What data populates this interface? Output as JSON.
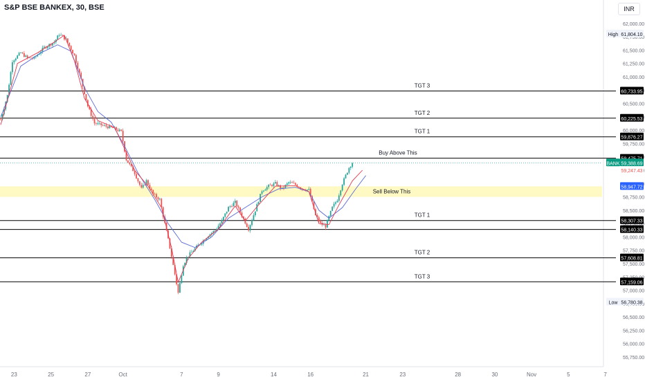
{
  "header": {
    "title": "S&P BSE BANKEX, 30, BSE",
    "currency": "INR"
  },
  "colors": {
    "up": "#26a69a",
    "down": "#ef5350",
    "ma_fast": "#e53950",
    "ma_slow": "#5b6bd6",
    "zone": "#fff59d",
    "level_line": "#000000"
  },
  "chart_data": {
    "type": "candlestick",
    "y_range": [
      55620,
      62180
    ],
    "y_ticks": [
      "62,000.00",
      "61,750.00",
      "61,500.00",
      "61,250.00",
      "61,000.00",
      "60,750.00",
      "60,500.00",
      "60,250.00",
      "60,000.00",
      "59,750.00",
      "59,500.00",
      "59,250.00",
      "59,000.00",
      "58,750.00",
      "58,500.00",
      "58,250.00",
      "58,000.00",
      "57,750.00",
      "57,500.00",
      "57,250.00",
      "57,000.00",
      "56,750.00",
      "56,500.00",
      "56,250.00",
      "56,000.00",
      "55,750.00"
    ],
    "x_ticks": [
      {
        "label": "23",
        "bar": 8
      },
      {
        "label": "25",
        "bar": 30
      },
      {
        "label": "27",
        "bar": 52
      },
      {
        "label": "Oct",
        "bar": 73
      },
      {
        "label": "7",
        "bar": 108
      },
      {
        "label": "9",
        "bar": 130
      },
      {
        "label": "14",
        "bar": 163
      },
      {
        "label": "16",
        "bar": 185
      },
      {
        "label": "21",
        "bar": 218
      },
      {
        "label": "23",
        "bar": 240
      },
      {
        "label": "28",
        "bar": 273
      },
      {
        "label": "30",
        "bar": 295
      },
      {
        "label": "Nov",
        "bar": 317
      },
      {
        "label": "5",
        "bar": 339
      },
      {
        "label": "7",
        "bar": 361
      }
    ],
    "levels": [
      {
        "label": "TGT 3",
        "value": 60733.95,
        "value_text": "60,733.95"
      },
      {
        "label": "TGT 2",
        "value": 60225.53,
        "value_text": "60,225.53"
      },
      {
        "label": "TGT 1",
        "value": 59876.27,
        "value_text": "59,876.27"
      },
      {
        "label": "Buy Above This",
        "value": 59475.71,
        "value_text": "59,475.71"
      },
      {
        "label": "TGT 1",
        "value": 58307.33,
        "value_text": "58,307.33"
      },
      {
        "label": "",
        "value": 58140.33,
        "value_text": "58,140.33"
      },
      {
        "label": "TGT 2",
        "value": 57608.81,
        "value_text": "57,608.81"
      },
      {
        "label": "TGT 3",
        "value": 57159.06,
        "value_text": "57,159.06"
      }
    ],
    "zone": {
      "label": "Sell Below This",
      "from": 58750,
      "to": 58947.72
    },
    "price_labels": [
      {
        "text": "High",
        "value_text": "61,804.10",
        "value": 61804.1,
        "style": "plain"
      },
      {
        "text": "BANK",
        "value_text": "59,388.69",
        "value": 59388.69,
        "style": "teal"
      },
      {
        "text": "",
        "value_text": "59,247.43",
        "value": 59247.43,
        "style": "red"
      },
      {
        "text": "",
        "value_text": "58,947.72",
        "value": 58947.72,
        "style": "blue"
      },
      {
        "text": "Low",
        "value_text": "56,780.38",
        "value": 56780.38,
        "style": "plain"
      }
    ],
    "waypoints": [
      [
        0,
        60200
      ],
      [
        4,
        60650
      ],
      [
        7,
        61300
      ],
      [
        12,
        61450
      ],
      [
        16,
        61350
      ],
      [
        20,
        61350
      ],
      [
        26,
        61550
      ],
      [
        32,
        61650
      ],
      [
        35,
        61800
      ],
      [
        39,
        61700
      ],
      [
        44,
        61400
      ],
      [
        48,
        60950
      ],
      [
        52,
        60450
      ],
      [
        56,
        60130
      ],
      [
        62,
        60080
      ],
      [
        68,
        60030
      ],
      [
        72,
        59970
      ],
      [
        75,
        59450
      ],
      [
        80,
        59200
      ],
      [
        84,
        58900
      ],
      [
        87,
        59050
      ],
      [
        91,
        58800
      ],
      [
        95,
        58700
      ],
      [
        98,
        58250
      ],
      [
        101,
        57800
      ],
      [
        104,
        57300
      ],
      [
        106,
        56950
      ],
      [
        109,
        57480
      ],
      [
        112,
        57650
      ],
      [
        116,
        57780
      ],
      [
        120,
        57900
      ],
      [
        124,
        58030
      ],
      [
        128,
        58120
      ],
      [
        132,
        58300
      ],
      [
        136,
        58550
      ],
      [
        140,
        58650
      ],
      [
        144,
        58400
      ],
      [
        148,
        58150
      ],
      [
        152,
        58500
      ],
      [
        156,
        58870
      ],
      [
        160,
        58950
      ],
      [
        164,
        59000
      ],
      [
        168,
        58900
      ],
      [
        172,
        59020
      ],
      [
        176,
        58980
      ],
      [
        180,
        58900
      ],
      [
        184,
        58880
      ],
      [
        188,
        58400
      ],
      [
        191,
        58250
      ],
      [
        194,
        58200
      ],
      [
        198,
        58550
      ],
      [
        201,
        58700
      ],
      [
        204,
        59000
      ],
      [
        208,
        59300
      ],
      [
        210,
        59390
      ]
    ],
    "ma_fast": [
      [
        0,
        60100
      ],
      [
        10,
        61250
      ],
      [
        22,
        61450
      ],
      [
        32,
        61650
      ],
      [
        38,
        61780
      ],
      [
        44,
        61300
      ],
      [
        50,
        60600
      ],
      [
        58,
        60180
      ],
      [
        68,
        60050
      ],
      [
        74,
        59650
      ],
      [
        80,
        59250
      ],
      [
        88,
        58950
      ],
      [
        96,
        58550
      ],
      [
        102,
        57800
      ],
      [
        106,
        57150
      ],
      [
        112,
        57600
      ],
      [
        120,
        57900
      ],
      [
        130,
        58150
      ],
      [
        140,
        58580
      ],
      [
        146,
        58300
      ],
      [
        154,
        58600
      ],
      [
        164,
        58950
      ],
      [
        176,
        58960
      ],
      [
        184,
        58850
      ],
      [
        190,
        58250
      ],
      [
        196,
        58230
      ],
      [
        202,
        58600
      ],
      [
        210,
        59050
      ],
      [
        216,
        59250
      ]
    ],
    "ma_slow": [
      [
        0,
        60250
      ],
      [
        12,
        61200
      ],
      [
        24,
        61450
      ],
      [
        34,
        61600
      ],
      [
        42,
        61480
      ],
      [
        50,
        60800
      ],
      [
        58,
        60350
      ],
      [
        66,
        60150
      ],
      [
        74,
        59700
      ],
      [
        82,
        59200
      ],
      [
        92,
        58700
      ],
      [
        100,
        58250
      ],
      [
        108,
        57900
      ],
      [
        116,
        57800
      ],
      [
        126,
        58000
      ],
      [
        136,
        58350
      ],
      [
        146,
        58550
      ],
      [
        156,
        58750
      ],
      [
        166,
        58900
      ],
      [
        176,
        58930
      ],
      [
        184,
        58850
      ],
      [
        190,
        58500
      ],
      [
        196,
        58350
      ],
      [
        204,
        58550
      ],
      [
        212,
        58900
      ],
      [
        218,
        59150
      ]
    ]
  }
}
